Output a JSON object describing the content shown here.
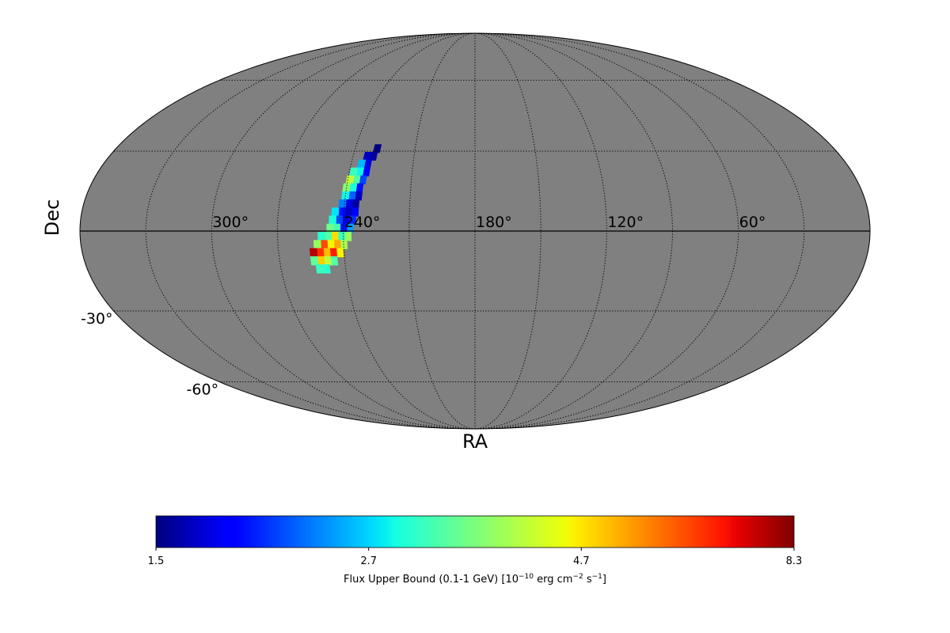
{
  "chart_data": {
    "type": "mollweide-map",
    "x_label": "RA",
    "y_label": "Dec",
    "xlim": [
      360,
      0
    ],
    "ylim": [
      -90,
      90
    ],
    "xticks": [
      {
        "value": 300,
        "label": "300°"
      },
      {
        "value": 240,
        "label": "240°"
      },
      {
        "value": 180,
        "label": "180°"
      },
      {
        "value": 120,
        "label": "120°"
      },
      {
        "value": 60,
        "label": "60°"
      }
    ],
    "yticks": [
      {
        "value": -30,
        "label": "-30°"
      },
      {
        "value": -60,
        "label": "-60°"
      }
    ],
    "graticule": {
      "ra_step": 30,
      "dec_step": 30
    },
    "background_color": "#808080",
    "colormap": "jet",
    "colorbar_ticks": [
      1.5,
      2.7,
      4.7,
      8.3
    ],
    "colorbar_label": [
      "Flux Upper Bound (0.1-1 GeV) [10",
      "−10",
      " erg cm",
      "−2",
      " s",
      "−1",
      "]"
    ],
    "cells": {
      "ra": [
        229,
        230,
        233,
        232,
        235,
        232,
        235,
        238,
        233,
        236,
        239,
        234,
        237,
        240,
        234,
        237,
        240,
        235,
        238,
        241,
        235,
        238,
        241,
        244,
        236,
        239,
        242,
        245,
        237,
        240,
        243,
        246,
        238,
        241,
        244,
        247,
        250,
        240,
        243,
        246,
        249,
        252,
        242,
        245,
        248,
        251,
        254,
        245,
        248,
        251,
        254,
        249,
        252
      ],
      "dec": [
        31,
        28,
        28,
        25,
        25,
        22,
        22,
        22,
        19,
        19,
        19,
        16,
        16,
        16,
        13,
        13,
        13,
        10,
        10,
        10,
        7,
        7,
        7,
        7,
        4,
        4,
        4,
        4,
        1,
        1,
        1,
        1,
        -2,
        -2,
        -2,
        -2,
        -2,
        -5,
        -5,
        -5,
        -5,
        -5,
        -8,
        -8,
        -8,
        -8,
        -8,
        -11,
        -11,
        -11,
        -11,
        -14,
        -14
      ],
      "values": [
        1.5,
        1.6,
        1.7,
        1.8,
        2.6,
        1.9,
        2.9,
        3.2,
        2.2,
        3.4,
        4.2,
        2.0,
        3.0,
        3.8,
        1.7,
        2.3,
        2.9,
        1.6,
        1.8,
        2.4,
        1.9,
        1.7,
        2.0,
        2.8,
        2.1,
        1.8,
        2.2,
        3.0,
        2.5,
        2.0,
        3.3,
        3.6,
        3.9,
        3.2,
        4.8,
        3.4,
        3.1,
        4.0,
        5.4,
        4.6,
        6.5,
        3.9,
        4.6,
        7.0,
        5.2,
        6.8,
        7.8,
        3.4,
        4.2,
        5.0,
        3.5,
        3.1,
        3.2
      ]
    }
  }
}
